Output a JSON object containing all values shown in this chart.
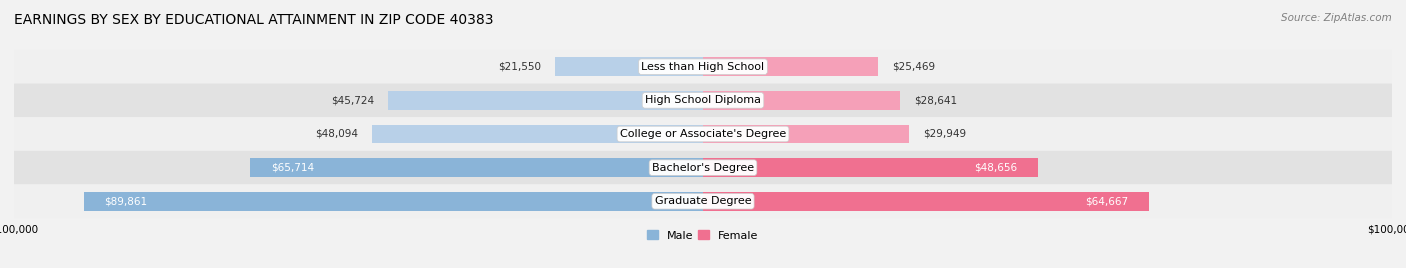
{
  "title": "EARNINGS BY SEX BY EDUCATIONAL ATTAINMENT IN ZIP CODE 40383",
  "source": "Source: ZipAtlas.com",
  "categories": [
    "Less than High School",
    "High School Diploma",
    "College or Associate's Degree",
    "Bachelor's Degree",
    "Graduate Degree"
  ],
  "male_values": [
    21550,
    45724,
    48094,
    65714,
    89861
  ],
  "female_values": [
    25469,
    28641,
    29949,
    48656,
    64667
  ],
  "male_color": "#8ab4d8",
  "female_color": "#f07090",
  "male_color_light": "#b8d0e8",
  "female_color_light": "#f5a0b8",
  "male_label": "Male",
  "female_label": "Female",
  "xlim": 100000,
  "bar_height": 0.55,
  "background_color": "#f2f2f2",
  "row_bg_light": "#f8f8f8",
  "row_bg_dark": "#e8e8e8",
  "title_fontsize": 10,
  "label_fontsize": 8,
  "value_fontsize": 7.5,
  "source_fontsize": 7.5,
  "male_inside_threshold": 50000,
  "female_inside_threshold": 40000
}
